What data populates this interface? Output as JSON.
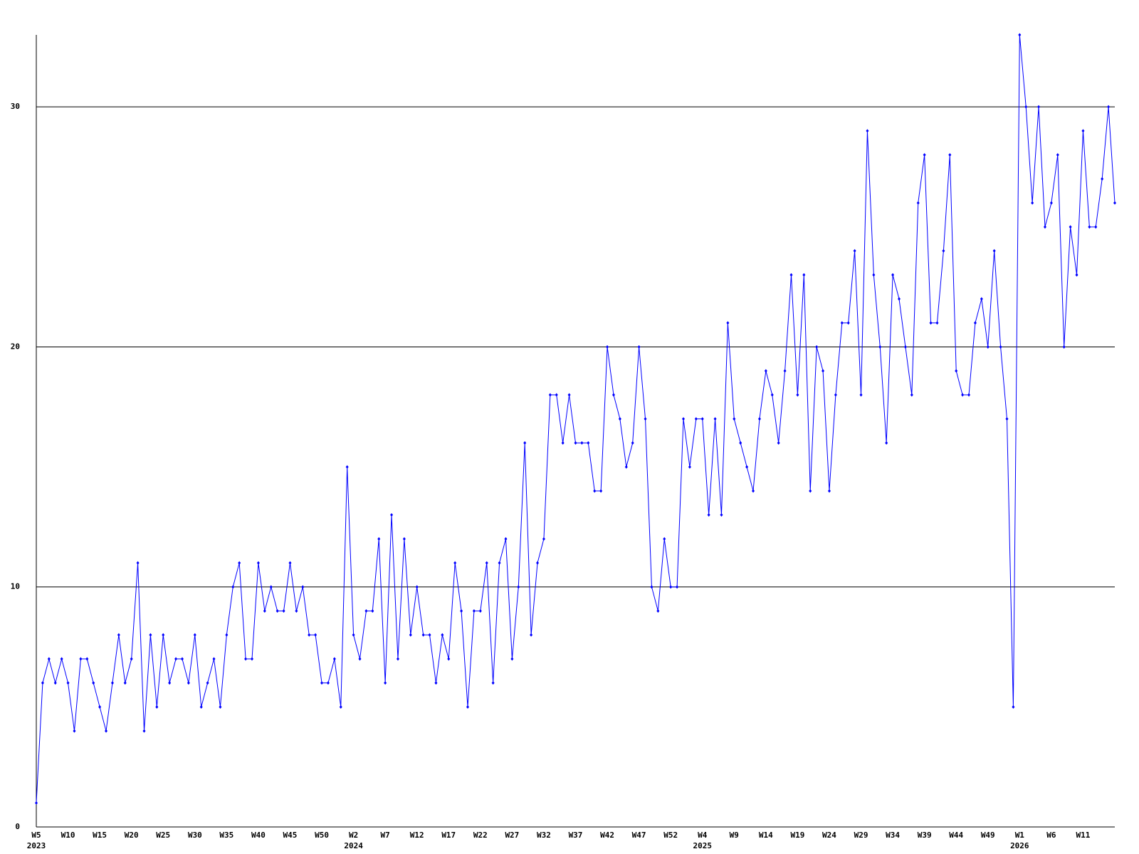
{
  "chart_data": {
    "type": "line",
    "categories": [
      "W5",
      null,
      null,
      null,
      null,
      "W10",
      null,
      null,
      null,
      null,
      "W15",
      null,
      null,
      null,
      null,
      "W20",
      null,
      null,
      null,
      null,
      "W25",
      null,
      null,
      null,
      null,
      "W30",
      null,
      null,
      null,
      null,
      "W35",
      null,
      null,
      null,
      null,
      "W40",
      null,
      null,
      null,
      null,
      "W45",
      null,
      null,
      null,
      null,
      "W50",
      null,
      null,
      null,
      null,
      "W2",
      null,
      null,
      null,
      null,
      "W7",
      null,
      null,
      null,
      null,
      "W12",
      null,
      null,
      null,
      null,
      "W17",
      null,
      null,
      null,
      null,
      "W22",
      null,
      null,
      null,
      null,
      "W27",
      null,
      null,
      null,
      null,
      "W32",
      null,
      null,
      null,
      null,
      "W37",
      null,
      null,
      null,
      null,
      "W42",
      null,
      null,
      null,
      null,
      "W47",
      null,
      null,
      null,
      null,
      "W52",
      null,
      null,
      null,
      null,
      "W4",
      null,
      null,
      null,
      null,
      "W9",
      null,
      null,
      null,
      null,
      "W14",
      null,
      null,
      null,
      null,
      "W19",
      null,
      null,
      null,
      null,
      "W24",
      null,
      null,
      null,
      null,
      "W29",
      null,
      null,
      null,
      null,
      "W34",
      null,
      null,
      null,
      null,
      "W39",
      null,
      null,
      null,
      null,
      "W44",
      null,
      null,
      null,
      null,
      "W49",
      null,
      null,
      null,
      null,
      "W1",
      null,
      null,
      null,
      null,
      "W6",
      null,
      null,
      null,
      null,
      "W11",
      null,
      null,
      null,
      null,
      null
    ],
    "category_years": [
      "2023",
      null,
      null,
      null,
      null,
      null,
      null,
      null,
      null,
      null,
      null,
      null,
      null,
      null,
      null,
      null,
      null,
      null,
      null,
      null,
      null,
      null,
      null,
      null,
      null,
      null,
      null,
      null,
      null,
      null,
      null,
      null,
      null,
      null,
      null,
      null,
      null,
      null,
      null,
      null,
      null,
      null,
      null,
      null,
      null,
      null,
      null,
      null,
      null,
      null,
      "2024",
      null,
      null,
      null,
      null,
      null,
      null,
      null,
      null,
      null,
      null,
      null,
      null,
      null,
      null,
      null,
      null,
      null,
      null,
      null,
      null,
      null,
      null,
      null,
      null,
      null,
      null,
      null,
      null,
      null,
      null,
      null,
      null,
      null,
      null,
      null,
      null,
      null,
      null,
      null,
      null,
      null,
      null,
      null,
      null,
      null,
      null,
      null,
      null,
      null,
      null,
      null,
      null,
      null,
      null,
      "2025",
      null,
      null,
      null,
      null,
      null,
      null,
      null,
      null,
      null,
      null,
      null,
      null,
      null,
      null,
      null,
      null,
      null,
      null,
      null,
      null,
      null,
      null,
      null,
      null,
      null,
      null,
      null,
      null,
      null,
      null,
      null,
      null,
      null,
      null,
      null,
      null,
      null,
      null,
      null,
      null,
      null,
      null,
      null,
      null,
      null,
      null,
      null,
      null,
      null,
      "2026",
      null,
      null,
      null,
      null,
      null,
      null,
      null,
      null,
      null,
      null,
      null,
      null,
      null,
      null,
      null
    ],
    "series": [
      {
        "color": "#0000ff",
        "values": [
          1,
          6,
          7,
          6,
          7,
          6,
          4,
          7,
          7,
          6,
          5,
          4,
          6,
          8,
          6,
          7,
          11,
          4,
          8,
          5,
          8,
          6,
          7,
          7,
          6,
          8,
          5,
          6,
          7,
          5,
          8,
          10,
          11,
          7,
          7,
          11,
          9,
          10,
          9,
          9,
          11,
          9,
          10,
          8,
          8,
          6,
          6,
          7,
          5,
          15,
          8,
          7,
          9,
          9,
          12,
          6,
          13,
          7,
          12,
          8,
          10,
          8,
          8,
          6,
          8,
          7,
          11,
          9,
          5,
          9,
          9,
          11,
          6,
          11,
          12,
          7,
          10,
          16,
          8,
          11,
          12,
          18,
          18,
          16,
          18,
          16,
          16,
          16,
          14,
          14,
          20,
          18,
          17,
          15,
          16,
          20,
          17,
          10,
          9,
          12,
          10,
          10,
          17,
          15,
          17,
          17,
          13,
          17,
          13,
          21,
          17,
          16,
          15,
          14,
          17,
          19,
          18,
          16,
          19,
          23,
          18,
          23,
          14,
          20,
          19,
          14,
          18,
          21,
          21,
          24,
          18,
          29,
          23,
          20,
          16,
          23,
          22,
          20,
          18,
          26,
          28,
          21,
          21,
          24,
          28,
          19,
          18,
          18,
          21,
          22,
          20,
          24,
          20,
          17,
          5,
          33,
          30,
          26,
          30,
          25,
          26,
          28,
          20,
          25,
          23,
          29,
          25,
          25,
          27,
          30,
          26
        ]
      }
    ],
    "ylim": [
      0,
      33
    ],
    "yticks": [
      0,
      10,
      20,
      30
    ],
    "grid": true
  }
}
